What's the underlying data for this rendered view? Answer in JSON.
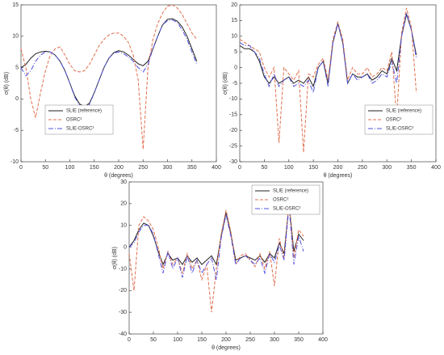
{
  "chart_data": [
    {
      "type": "line",
      "xlabel": "θ (degrees)",
      "ylabel": "σ(θ) (dB)",
      "x": [
        0,
        10,
        20,
        30,
        40,
        50,
        60,
        70,
        80,
        90,
        100,
        110,
        120,
        130,
        140,
        150,
        160,
        170,
        180,
        190,
        200,
        210,
        220,
        230,
        240,
        250,
        260,
        270,
        280,
        290,
        300,
        310,
        320,
        330,
        340,
        350,
        360
      ],
      "xlim": [
        0,
        400
      ],
      "xticks": [
        0,
        50,
        100,
        150,
        200,
        250,
        300,
        350,
        400
      ],
      "ylim": [
        -10,
        15
      ],
      "yticks": [
        -10,
        -5,
        0,
        5,
        10,
        15
      ],
      "legend": "lower left",
      "series": [
        {
          "name": "SLIE (reference)",
          "color": "#222222",
          "dash": "solid",
          "values": [
            5,
            5.5,
            6.5,
            7.2,
            7.5,
            7.6,
            7.5,
            7,
            6,
            4.5,
            2.5,
            0.5,
            -0.8,
            -1.2,
            -0.7,
            1,
            3,
            5,
            6.5,
            7.4,
            7.7,
            7.5,
            7,
            6.3,
            5.6,
            5.3,
            6,
            8,
            10,
            11.8,
            12.7,
            12.8,
            12.4,
            11.5,
            10,
            8,
            6
          ]
        },
        {
          "name": "OSRC²",
          "color": "#e0704f",
          "dash": "dashed",
          "values": [
            8,
            5,
            0,
            -3,
            1,
            4.5,
            7,
            8,
            8.3,
            7,
            5.5,
            4.5,
            4.3,
            4.5,
            5.5,
            7,
            8.5,
            9.5,
            10.2,
            10.5,
            10.5,
            10,
            9,
            7,
            3,
            -8,
            5,
            9.5,
            12,
            13.7,
            14.8,
            15,
            14.5,
            13.5,
            12,
            10.5,
            9.5
          ]
        },
        {
          "name": "SLIE-OSRC²",
          "color": "#5050e0",
          "dash": "dashdot",
          "values": [
            5,
            3.7,
            4.5,
            6,
            7,
            7.5,
            7.5,
            7,
            6,
            4.5,
            2.5,
            0.3,
            -1,
            -1.4,
            -0.9,
            1,
            3,
            5,
            6.5,
            7.3,
            7.5,
            7.2,
            6.7,
            6,
            5,
            4.3,
            5.5,
            8,
            10,
            11.8,
            12.5,
            12.6,
            12.2,
            11,
            9.5,
            7.5,
            5.5
          ]
        }
      ]
    },
    {
      "type": "line",
      "xlabel": "θ (degrees)",
      "ylabel": "σ(θ) (dB)",
      "x": [
        0,
        10,
        20,
        30,
        40,
        50,
        60,
        70,
        80,
        90,
        100,
        110,
        120,
        130,
        140,
        150,
        160,
        170,
        180,
        190,
        200,
        210,
        220,
        230,
        240,
        250,
        260,
        270,
        280,
        290,
        300,
        310,
        320,
        330,
        340,
        350,
        360
      ],
      "xlim": [
        0,
        400
      ],
      "xticks": [
        0,
        50,
        100,
        150,
        200,
        250,
        300,
        350,
        400
      ],
      "ylim": [
        -30,
        20
      ],
      "yticks": [
        -30,
        -25,
        -20,
        -15,
        -10,
        -5,
        0,
        5,
        10,
        15,
        20
      ],
      "legend": "lower right",
      "series": [
        {
          "name": "SLIE (reference)",
          "color": "#222222",
          "dash": "solid",
          "values": [
            7,
            6,
            6,
            5,
            2,
            -3,
            -5,
            -3,
            -5,
            -4,
            -3,
            -5,
            -4,
            -5,
            -3,
            -6,
            0,
            2,
            -5,
            8,
            14,
            8,
            -5,
            -2,
            -3,
            -3,
            -2,
            -4,
            -3,
            -1,
            -2,
            3,
            -1,
            10,
            17,
            12,
            4
          ]
        },
        {
          "name": "OSRC²",
          "color": "#e0704f",
          "dash": "dashed",
          "values": [
            9,
            8,
            7,
            6,
            5,
            0,
            -3,
            0,
            -24,
            0,
            -2,
            -4,
            -1,
            -27,
            -2,
            -3,
            1,
            3,
            -4,
            9,
            14.5,
            9,
            -4,
            0,
            -2,
            -2,
            0,
            -3,
            -2,
            0,
            -1,
            5,
            -16,
            11,
            19,
            13,
            -8
          ]
        },
        {
          "name": "SLIE-OSRC²",
          "color": "#5050e0",
          "dash": "dashdot",
          "values": [
            8,
            7,
            7,
            5,
            3,
            -2,
            -6,
            -2,
            -6,
            -4,
            -3,
            -6,
            -5,
            -6,
            -4,
            -8,
            0,
            2,
            -6,
            8,
            14,
            8,
            -5,
            -2,
            -4,
            -3,
            -2,
            -5,
            -4,
            -2,
            -3,
            2,
            -5,
            10,
            17.5,
            12,
            3
          ]
        }
      ]
    },
    {
      "type": "line",
      "xlabel": "θ (degrees)",
      "ylabel": "σ(θ) (dB)",
      "x": [
        0,
        10,
        20,
        30,
        40,
        50,
        60,
        70,
        80,
        90,
        100,
        110,
        120,
        130,
        140,
        150,
        160,
        170,
        180,
        190,
        200,
        210,
        220,
        230,
        240,
        250,
        260,
        270,
        280,
        290,
        300,
        310,
        320,
        330,
        340,
        350,
        360
      ],
      "xlim": [
        0,
        400
      ],
      "xticks": [
        0,
        50,
        100,
        150,
        200,
        250,
        300,
        350,
        400
      ],
      "ylim": [
        -40,
        30
      ],
      "yticks": [
        -40,
        -30,
        -20,
        -10,
        0,
        10,
        20,
        30
      ],
      "legend": "upper right",
      "series": [
        {
          "name": "SLIE (reference)",
          "color": "#222222",
          "dash": "solid",
          "values": [
            0,
            3,
            8,
            11,
            10,
            5,
            -2,
            -8,
            -3,
            -6,
            -5,
            -8,
            -4,
            -7,
            -5,
            -8,
            -6,
            -4,
            -8,
            5,
            16,
            6,
            -6,
            -5,
            -4,
            -5,
            -6,
            -4,
            -7,
            -3,
            -5,
            2,
            -3,
            20,
            -2,
            6,
            3
          ]
        },
        {
          "name": "OSRC²",
          "color": "#e0704f",
          "dash": "dashed",
          "values": [
            -3,
            -20,
            10,
            14,
            12,
            8,
            0,
            -10,
            -2,
            -8,
            -5,
            -12,
            -3,
            -10,
            -6,
            -15,
            -8,
            -30,
            -10,
            6,
            17,
            7,
            -8,
            -4,
            -3,
            -6,
            -9,
            -3,
            -10,
            -2,
            -18,
            4,
            -5,
            21,
            -5,
            8,
            5
          ]
        },
        {
          "name": "SLIE-OSRC²",
          "color": "#5050e0",
          "dash": "dashdot",
          "values": [
            0,
            2,
            7,
            10,
            10,
            6,
            -3,
            -12,
            -2,
            -10,
            -5,
            -14,
            -4,
            -12,
            -6,
            -12,
            -8,
            -5,
            -15,
            4,
            15,
            5,
            -8,
            -5,
            -4,
            -6,
            -8,
            -5,
            -12,
            -3,
            -7,
            1,
            -6,
            19,
            -8,
            5,
            -2
          ]
        }
      ]
    }
  ]
}
